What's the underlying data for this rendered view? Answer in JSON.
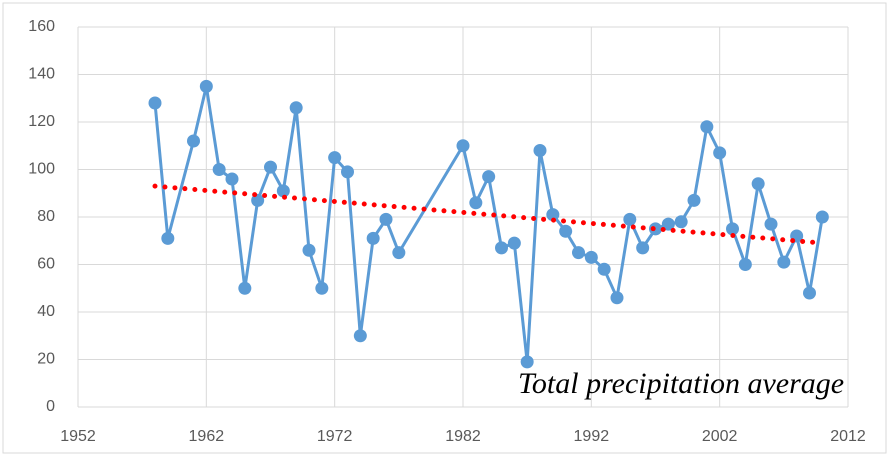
{
  "chart_data": {
    "type": "line",
    "annotation": "Total precipitation  average",
    "xlim": [
      1952,
      2012
    ],
    "xticks": [
      1952,
      1962,
      1972,
      1982,
      1992,
      2002,
      2012
    ],
    "ylim": [
      0,
      160
    ],
    "yticks": [
      0,
      20,
      40,
      60,
      80,
      100,
      120,
      140,
      160
    ],
    "grid": true,
    "series": [
      {
        "color": "#5b9bd5",
        "style": "solid-markers",
        "x": [
          1958,
          1959,
          1961,
          1962,
          1963,
          1964,
          1965,
          1966,
          1967,
          1968,
          1969,
          1970,
          1971,
          1972,
          1973,
          1974,
          1975,
          1976,
          1977,
          1982,
          1983,
          1984,
          1985,
          1986,
          1987,
          1988,
          1989,
          1990,
          1991,
          1992,
          1993,
          1994,
          1995,
          1996,
          1997,
          1998,
          1999,
          2000,
          2001,
          2002,
          2003,
          2004,
          2005,
          2006,
          2007,
          2008,
          2009,
          2010
        ],
        "values": [
          128,
          71,
          112,
          135,
          100,
          96,
          50,
          87,
          101,
          91,
          126,
          66,
          50,
          105,
          99,
          30,
          71,
          79,
          65,
          110,
          86,
          97,
          67,
          69,
          19,
          108,
          81,
          74,
          65,
          63,
          58,
          46,
          79,
          67,
          75,
          77,
          78,
          87,
          118,
          107,
          75,
          60,
          94,
          77,
          61,
          72,
          48,
          80
        ]
      },
      {
        "color": "#ff0000",
        "style": "dotted",
        "x": [
          1958,
          2010
        ],
        "values": [
          93,
          69
        ]
      }
    ]
  }
}
